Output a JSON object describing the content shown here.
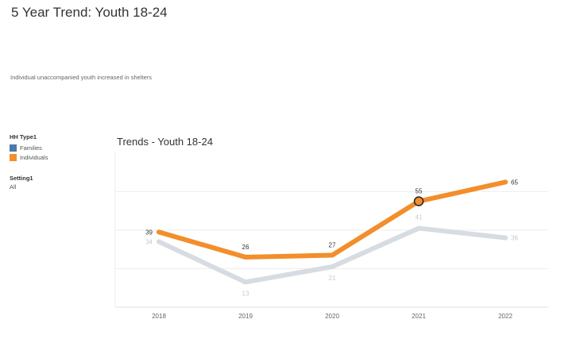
{
  "dashboard": {
    "title": "5 Year Trend: Youth 18-24",
    "subtitle": "Individual unaccompanied youth increased in shelters"
  },
  "legend": {
    "title": "HH Type1",
    "items": [
      {
        "label": "Families",
        "color": "#4e79a7"
      },
      {
        "label": "Individuals",
        "color": "#f28e2b"
      }
    ]
  },
  "filter": {
    "title": "Setting1",
    "value": "All"
  },
  "chart_data": {
    "type": "line",
    "title": "Trends - Youth 18-24",
    "categories": [
      "2018",
      "2019",
      "2020",
      "2021",
      "2022"
    ],
    "series": [
      {
        "name": "Families",
        "values": [
          34,
          13,
          21,
          41,
          36
        ],
        "color": "#d6dce2",
        "label_color": "#c4c9ce"
      },
      {
        "name": "Individuals",
        "values": [
          39,
          26,
          27,
          55,
          65
        ],
        "color": "#f28e2b",
        "label_color": "#333333"
      }
    ],
    "highlighted_point": {
      "series": "Individuals",
      "category": "2021"
    },
    "ylim": [
      0,
      80
    ],
    "xlabel": "",
    "ylabel": "",
    "grid": true,
    "legend_position": "left"
  }
}
